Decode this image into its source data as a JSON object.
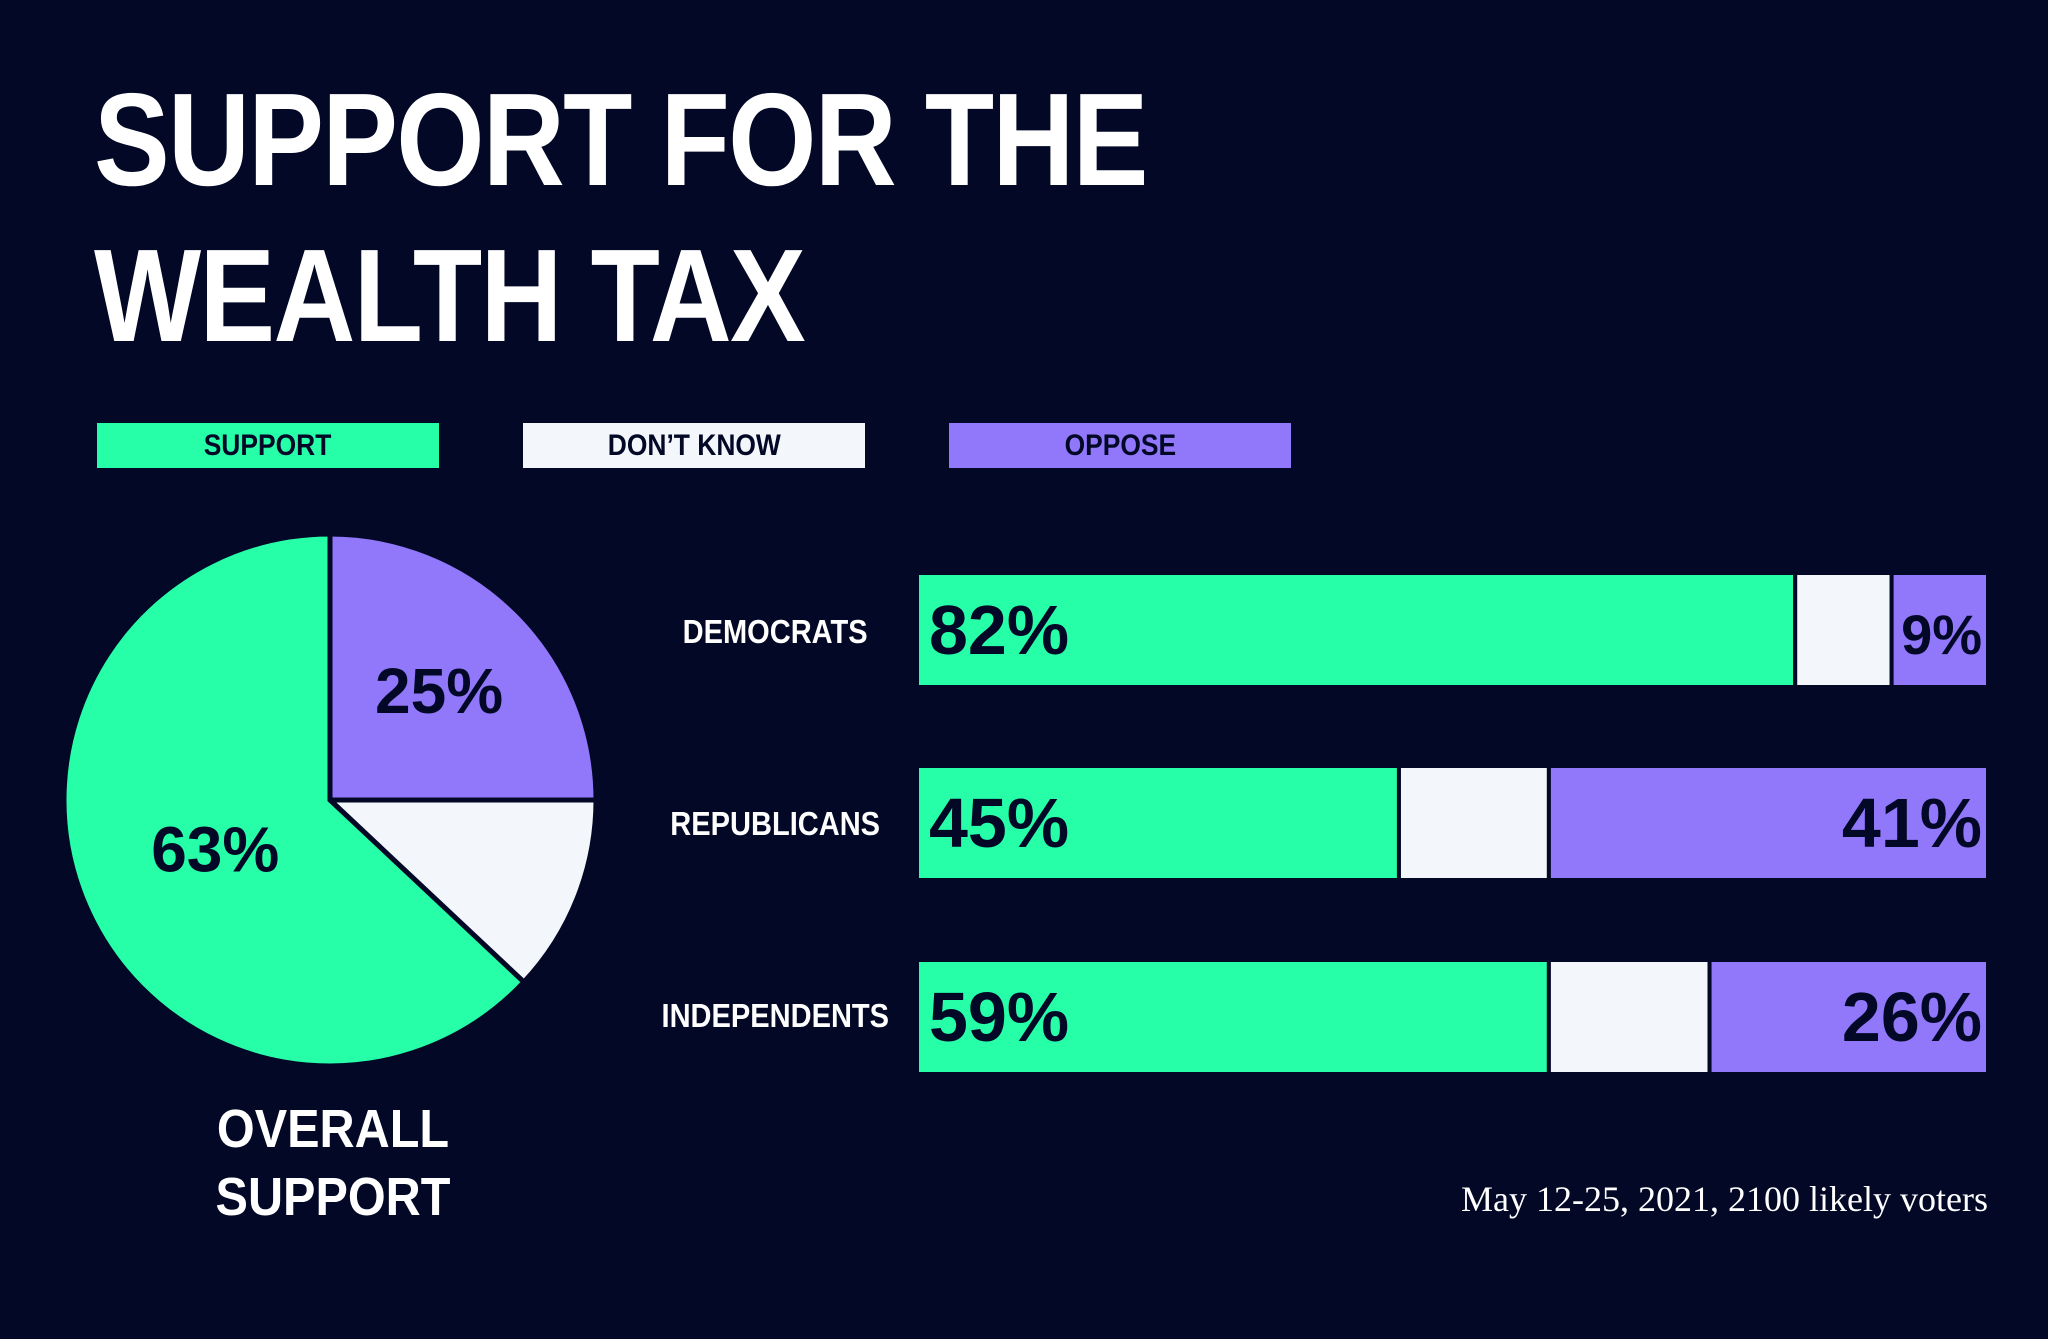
{
  "title": {
    "line1": "SUPPORT FOR THE",
    "line2": "WEALTH TAX"
  },
  "legend": [
    {
      "label": "SUPPORT",
      "color": "#27ffa8"
    },
    {
      "label": "DON’T KNOW",
      "color": "#f3f7fb"
    },
    {
      "label": "OPPOSE",
      "color": "#9177fa"
    }
  ],
  "pie_caption": {
    "line1": "OVERALL",
    "line2": "SUPPORT"
  },
  "source_note": "May 12-25, 2021, 2100 likely voters",
  "chart_data": [
    {
      "type": "pie",
      "title": "OVERALL SUPPORT",
      "slices": [
        {
          "name": "OPPOSE",
          "value": 25,
          "label": "25%",
          "color": "#9177fa"
        },
        {
          "name": "DON’T KNOW",
          "value": 12,
          "label": "",
          "color": "#f3f7fb"
        },
        {
          "name": "SUPPORT",
          "value": 63,
          "label": "63%",
          "color": "#27ffa8"
        }
      ]
    },
    {
      "type": "bar",
      "orientation": "horizontal",
      "stacked": true,
      "categories": [
        "DEMOCRATS",
        "REPUBLICANS",
        "INDEPENDENTS"
      ],
      "series": [
        {
          "name": "SUPPORT",
          "color": "#27ffa8",
          "values": [
            82,
            45,
            59
          ],
          "labels": [
            "82%",
            "45%",
            "59%"
          ]
        },
        {
          "name": "DON’T KNOW",
          "color": "#f3f7fb",
          "values": [
            9,
            14,
            15
          ],
          "labels": [
            "",
            "",
            ""
          ]
        },
        {
          "name": "OPPOSE",
          "color": "#9177fa",
          "values": [
            9,
            41,
            26
          ],
          "labels": [
            "9%",
            "41%",
            "26%"
          ]
        }
      ],
      "xlim": [
        0,
        100
      ]
    }
  ]
}
